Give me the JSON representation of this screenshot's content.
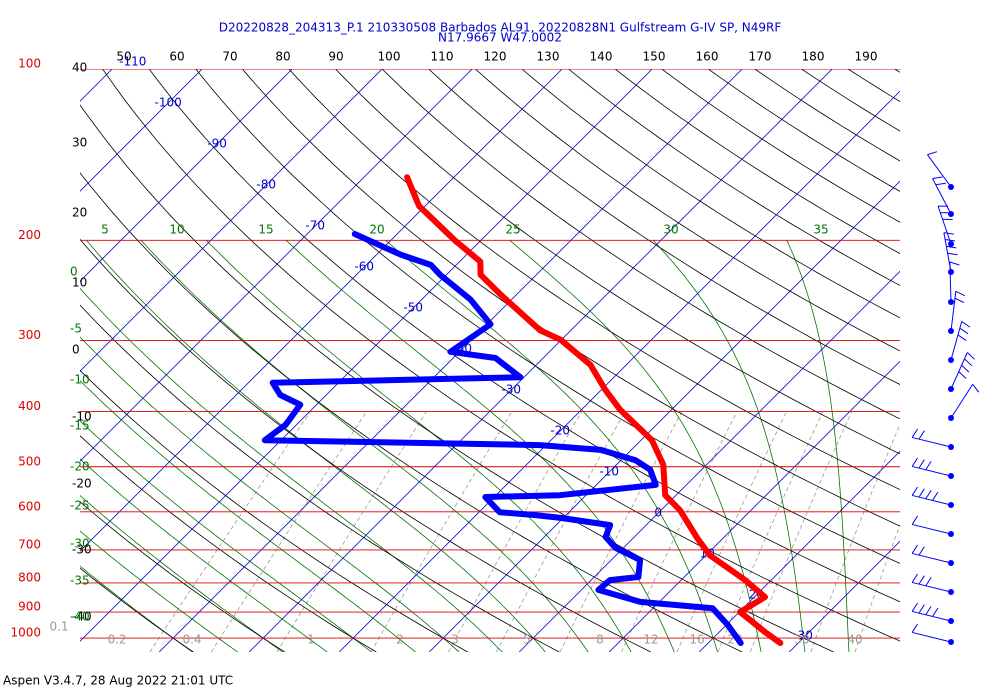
{
  "chart_data": {
    "type": "skewt",
    "title": "D20220828_204313_P.1 210330508 Barbados AL91, 20220828N1 Gulfstream G-IV SP, N49RF",
    "subtitle": "N17.9667 W47.0002",
    "footer": "Aspen V3.4.7, 28 Aug 2022  21:01 UTC",
    "log_scale": true,
    "ylim": [
      1058,
      100
    ],
    "yticks": [
      100,
      200,
      300,
      400,
      500,
      600,
      700,
      800,
      900,
      1000
    ],
    "xlim": [
      -48.8,
      42.3
    ],
    "xticks": [
      -110,
      -100,
      -90,
      -80,
      -70,
      -60,
      -50,
      -40,
      -30,
      -20,
      -10,
      0,
      10,
      20,
      30
    ],
    "top_labels": [
      50,
      60,
      70,
      80,
      90,
      100,
      110,
      120,
      130,
      140,
      150,
      160,
      170,
      180,
      190
    ],
    "dry_adiabat_labels": [
      40,
      30,
      20,
      10,
      0,
      -10,
      -20,
      -30,
      -40
    ],
    "moist_adiabat_labels_top": [
      5,
      10,
      15,
      20,
      25,
      30,
      35
    ],
    "moist_adiabat_labels_left": [
      0,
      -5,
      -10,
      -15,
      -20,
      -25,
      -30,
      -35,
      -40
    ],
    "mixing_ratio_labels": [
      0.1,
      0.2,
      0.4,
      1,
      2,
      3,
      5,
      8,
      12,
      16,
      20,
      30,
      40
    ],
    "series": [
      {
        "color": "#ff0000",
        "pressure": [
          1020,
          976,
          900,
          847,
          791,
          715,
          667,
          596,
          561,
          496,
          449,
          397,
          366,
          331,
          299,
          288,
          249,
          230,
          218,
          200,
          174,
          155
        ],
        "values": [
          28.0,
          25.1,
          20.1,
          21.2,
          17.1,
          10.4,
          7.1,
          2.1,
          -1.2,
          -4.8,
          -8.8,
          -15.7,
          -19.6,
          -24.0,
          -30.1,
          -33.4,
          -41.8,
          -46.2,
          -47.7,
          -52.9,
          -60.7,
          -65.2
        ]
      },
      {
        "color": "#0000ff",
        "pressure": [
          1020,
          949,
          886,
          864,
          823,
          791,
          781,
          729,
          694,
          664,
          633,
          615,
          608,
          601,
          565,
          561,
          538,
          506,
          487,
          467,
          458,
          449,
          422,
          389,
          374,
          356,
          348,
          322,
          314,
          281,
          254,
          230,
          221,
          212,
          195
        ],
        "values": [
          23.6,
          20.2,
          16.6,
          7.9,
          1.9,
          2.1,
          4.9,
          3.2,
          -0.9,
          -3.2,
          -4.0,
          -10.3,
          -13.4,
          -17.7,
          -21.0,
          -12.9,
          -3.4,
          -5.7,
          -8.4,
          -13.4,
          -20.7,
          -51.8,
          -51.2,
          -51.8,
          -55.1,
          -57.3,
          -30.4,
          -35.3,
          -41.0,
          -39.6,
          -44.6,
          -50.7,
          -52.8,
          -57.3,
          -64.7
        ]
      }
    ]
  }
}
